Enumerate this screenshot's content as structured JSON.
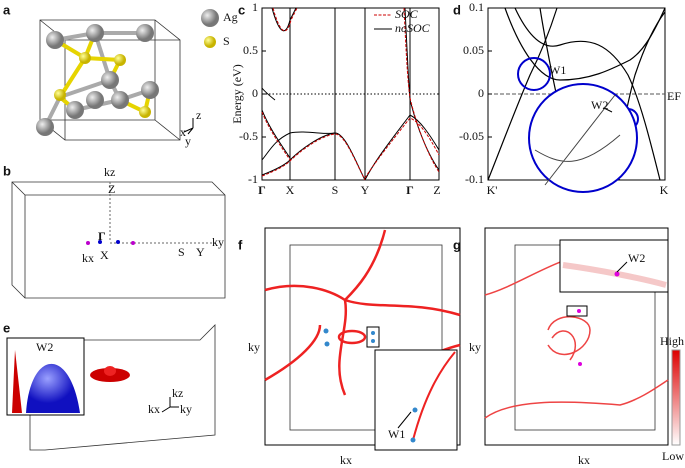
{
  "panels": {
    "a": {
      "label": "a",
      "legend": [
        "Ag",
        "S"
      ],
      "axes": [
        "x",
        "y",
        "z"
      ]
    },
    "b": {
      "label": "b",
      "points": [
        "kz",
        "Z",
        "Γ",
        "kx",
        "X",
        "S",
        "Y",
        "ky"
      ]
    },
    "c": {
      "label": "c",
      "ylabel": "Energy (eV)",
      "ylim": [
        -1,
        1
      ],
      "yticks": [
        1,
        0.5,
        0,
        -0.5,
        -1
      ],
      "xlabels": [
        "Γ",
        "X",
        "S",
        "Y",
        "Γ",
        "Z"
      ],
      "legend": [
        "SOC",
        "noSOC"
      ]
    },
    "d": {
      "label": "d",
      "ylim": [
        -0.1,
        0.1
      ],
      "yticks": [
        0.1,
        0.05,
        0,
        -0.05,
        -0.1
      ],
      "fermi": "EF",
      "nodes": [
        "W1",
        "W2"
      ],
      "xlabels": [
        "K'",
        "K"
      ]
    },
    "e": {
      "label": "e",
      "node": "W2",
      "axes": [
        "kz",
        "kx",
        "ky"
      ]
    },
    "f": {
      "label": "f",
      "ylabel": "ky",
      "xlabel": "kx",
      "node": "W1"
    },
    "g": {
      "label": "g",
      "ylabel": "ky",
      "xlabel": "kx",
      "node": "W2",
      "colorbar": [
        "High",
        "Low"
      ]
    }
  }
}
